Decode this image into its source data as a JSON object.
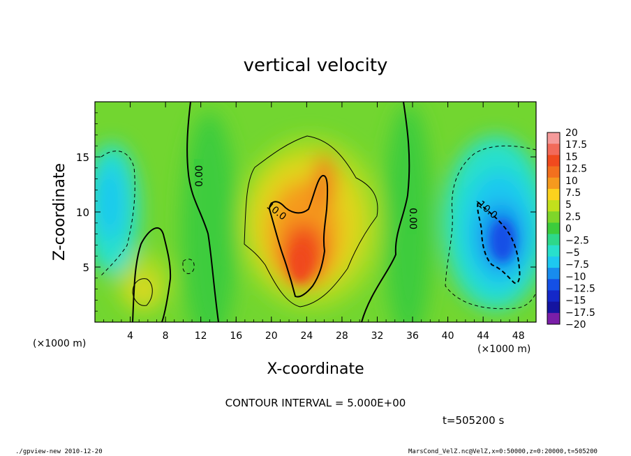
{
  "chart_data": {
    "type": "heatmap",
    "title": "vertical velocity",
    "xlabel": "X-coordinate",
    "ylabel": "Z-coordinate",
    "x_unit_left": "(×1000 m)",
    "x_unit_right": "(×1000 m)",
    "xlim": [
      0,
      50
    ],
    "ylim": [
      0,
      20
    ],
    "x_ticks": [
      "4",
      "8",
      "12",
      "16",
      "20",
      "24",
      "28",
      "32",
      "36",
      "40",
      "44",
      "48"
    ],
    "x_tick_values": [
      4,
      8,
      12,
      16,
      20,
      24,
      28,
      32,
      36,
      40,
      44,
      48
    ],
    "y_ticks": [
      "5",
      "10",
      "15"
    ],
    "y_tick_values": [
      5,
      10,
      15
    ],
    "colorbar": {
      "labels": [
        "20",
        "17.5",
        "15",
        "12.5",
        "10",
        "7.5",
        "5",
        "2.5",
        "0",
        "−2.5",
        "−5",
        "−7.5",
        "−10",
        "−12.5",
        "−15",
        "−17.5",
        "−20"
      ],
      "colors": [
        "#f59a9a",
        "#f26a5a",
        "#f04a1e",
        "#f2701e",
        "#f59a1e",
        "#fbd21e",
        "#c2e01c",
        "#7ed62a",
        "#3ccc3c",
        "#2ed88a",
        "#28e0cc",
        "#1ec8f0",
        "#188cee",
        "#1450e6",
        "#1428c8",
        "#1414a0",
        "#7a1ea8"
      ]
    },
    "contour_labels": [
      {
        "text": "0.00",
        "x": 11.8,
        "z": 12.8
      },
      {
        "text": "10.0",
        "x": 21.2,
        "z": 10.3
      },
      {
        "text": "0.00",
        "x": 36.5,
        "z": 9.4
      },
      {
        "text": "-10.0",
        "x": 45.0,
        "z": 10.2
      }
    ],
    "contour_interval": "CONTOUR INTERVAL = 5.000E+00",
    "time": "t=505200 s"
  },
  "footer": {
    "left": "./gpview-new  2010-12-20",
    "right": "MarsCond_VelZ.nc@VelZ,x=0:50000,z=0:20000,t=505200"
  },
  "colors": {
    "background": "#ffffff",
    "ink": "#000000"
  }
}
